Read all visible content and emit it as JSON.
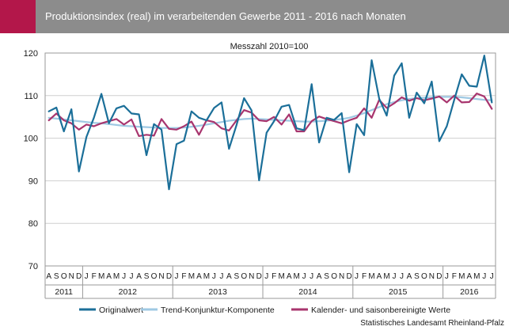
{
  "header": {
    "title": "Produktionsindex (real) im verarbeitenden Gewerbe 2011 - 2016 nach Monaten"
  },
  "source": "Statistisches Landesamt Rheinland-Pfalz",
  "colors": {
    "header_bg": "#8c8c8c",
    "accent": "#b3174a",
    "original": "#1b6f99",
    "trend": "#9fc9e3",
    "seasonal": "#a8356e"
  },
  "chart_data": {
    "type": "line",
    "subtitle": "Messzahl 2010=100",
    "ylim": [
      70,
      120
    ],
    "yticks": [
      70,
      80,
      90,
      100,
      110,
      120
    ],
    "grid": true,
    "legend_position": "bottom",
    "months": [
      "A",
      "S",
      "O",
      "N",
      "D",
      "J",
      "F",
      "M",
      "A",
      "M",
      "J",
      "J",
      "A",
      "S",
      "O",
      "N",
      "D",
      "J",
      "F",
      "M",
      "A",
      "M",
      "J",
      "J",
      "A",
      "S",
      "O",
      "N",
      "D",
      "J",
      "F",
      "M",
      "A",
      "M",
      "J",
      "J",
      "A",
      "S",
      "O",
      "N",
      "D",
      "J",
      "F",
      "M",
      "A",
      "M",
      "J",
      "J",
      "A",
      "S",
      "O",
      "N",
      "D",
      "J",
      "F",
      "M",
      "A",
      "M",
      "J",
      "J"
    ],
    "years": [
      {
        "label": "2011",
        "start": 0,
        "end": 4
      },
      {
        "label": "2012",
        "start": 5,
        "end": 16
      },
      {
        "label": "2013",
        "start": 17,
        "end": 28
      },
      {
        "label": "2014",
        "start": 29,
        "end": 40
      },
      {
        "label": "2015",
        "start": 41,
        "end": 52
      },
      {
        "label": "2016",
        "start": 53,
        "end": 59
      }
    ],
    "series": [
      {
        "name": "Originalwert",
        "color": "#1b6f99",
        "values": [
          106.3,
          107.2,
          101.6,
          106.8,
          92.2,
          100.3,
          104.8,
          110.4,
          103.5,
          107.0,
          107.6,
          105.8,
          105.6,
          96.0,
          103.3,
          102.0,
          88.0,
          98.6,
          99.4,
          106.3,
          104.8,
          104.2,
          107.1,
          108.4,
          97.5,
          103.1,
          109.4,
          106.5,
          90.1,
          101.3,
          104.0,
          107.4,
          107.8,
          102.3,
          101.9,
          112.7,
          99.0,
          104.8,
          104.3,
          105.9,
          92.0,
          103.3,
          100.7,
          118.3,
          109.3,
          105.3,
          114.7,
          117.6,
          104.8,
          110.7,
          108.2,
          113.3,
          99.3,
          102.8,
          109.0,
          115.0,
          112.3,
          112.1,
          119.4,
          108.4
        ]
      },
      {
        "name": "Trend-Konjunktur-Komponente",
        "color": "#9fc9e3",
        "values": [
          104.8,
          104.6,
          104.4,
          104.2,
          104.0,
          103.8,
          103.6,
          103.5,
          103.3,
          103.1,
          102.9,
          102.8,
          102.7,
          102.6,
          102.5,
          102.4,
          102.4,
          102.4,
          102.5,
          102.7,
          102.9,
          103.2,
          103.5,
          103.8,
          104.1,
          104.3,
          104.5,
          104.6,
          104.5,
          104.4,
          104.3,
          104.2,
          104.1,
          104.0,
          103.9,
          103.9,
          104.0,
          104.1,
          104.3,
          104.5,
          104.8,
          105.3,
          105.9,
          106.6,
          107.3,
          108.0,
          108.5,
          108.9,
          109.2,
          109.4,
          109.5,
          109.6,
          109.7,
          109.7,
          109.7,
          109.6,
          109.4,
          109.2,
          109.0,
          108.9
        ]
      },
      {
        "name": "Kalender- und saisonbereinigte Werte",
        "color": "#a8356e",
        "values": [
          104.2,
          105.8,
          104.2,
          103.5,
          102.0,
          103.2,
          102.8,
          103.5,
          104.0,
          104.5,
          103.2,
          104.4,
          100.5,
          100.8,
          100.6,
          104.5,
          102.2,
          102.0,
          102.8,
          103.9,
          100.8,
          104.2,
          103.8,
          102.3,
          101.8,
          104.2,
          106.6,
          106.0,
          104.2,
          104.0,
          105.0,
          103.2,
          105.6,
          101.6,
          101.6,
          104.0,
          105.1,
          104.5,
          104.0,
          103.5,
          104.2,
          104.8,
          107.0,
          104.8,
          109.0,
          107.1,
          108.2,
          109.6,
          108.8,
          109.4,
          108.9,
          109.3,
          109.8,
          108.4,
          110.0,
          108.4,
          108.5,
          110.5,
          109.8,
          106.9
        ]
      }
    ]
  }
}
